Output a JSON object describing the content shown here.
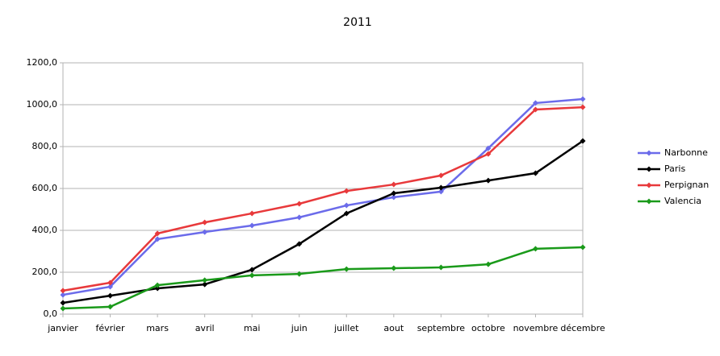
{
  "chart_data": {
    "type": "line",
    "title": "2011",
    "categories": [
      "janvier",
      "février",
      "mars",
      "avril",
      "mai",
      "juin",
      "juillet",
      "aout",
      "septembre",
      "octobre",
      "novembre",
      "décembre"
    ],
    "series": [
      {
        "name": "Narbonne",
        "color": "#6b6bea",
        "values": [
          92,
          131,
          358,
          392,
          423,
          462,
          519,
          558,
          585,
          792,
          1008,
          1027
        ]
      },
      {
        "name": "Paris",
        "color": "#000000",
        "values": [
          54,
          88,
          123,
          142,
          212,
          335,
          481,
          577,
          604,
          638,
          673,
          827
        ]
      },
      {
        "name": "Perpignan",
        "color": "#e8393b",
        "values": [
          112,
          150,
          385,
          438,
          481,
          527,
          588,
          619,
          662,
          765,
          977,
          988
        ]
      },
      {
        "name": "Valencia",
        "color": "#1a9a1a",
        "values": [
          27,
          35,
          138,
          162,
          185,
          192,
          215,
          219,
          223,
          238,
          312,
          319
        ]
      }
    ],
    "ylim": [
      0,
      1200
    ],
    "yticks": [
      {
        "value": 0,
        "label": "0,0"
      },
      {
        "value": 200,
        "label": "200,0"
      },
      {
        "value": 400,
        "label": "400,0"
      },
      {
        "value": 600,
        "label": "600,0"
      },
      {
        "value": 800,
        "label": "800,0"
      },
      {
        "value": 1000,
        "label": "1000,0"
      },
      {
        "value": 1200,
        "label": "1200,0"
      }
    ],
    "grid": true,
    "legend": "right"
  }
}
